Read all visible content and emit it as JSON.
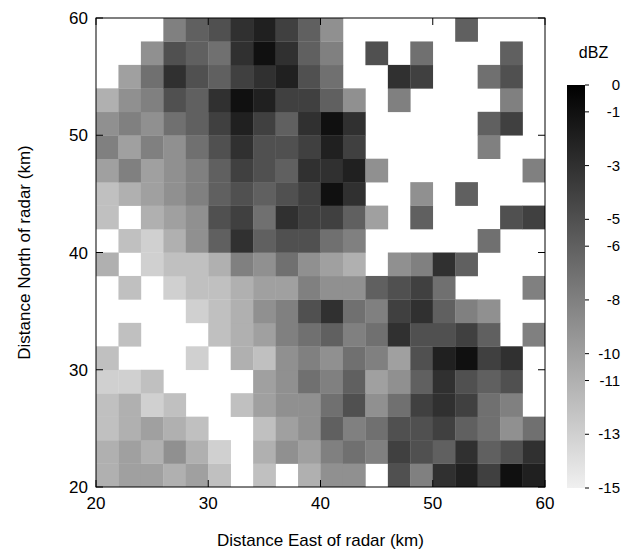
{
  "chart_data": {
    "type": "heatmap",
    "xlabel": "Distance East of radar (km)",
    "ylabel": "Distance North of radar (km)",
    "colorbar_label": "dBZ",
    "xlim": [
      20,
      60
    ],
    "ylim": [
      20,
      60
    ],
    "xticks": [
      20,
      30,
      40,
      50,
      60
    ],
    "yticks": [
      20,
      30,
      40,
      50,
      60
    ],
    "zlim": [
      -15,
      0
    ],
    "zticks": [
      0,
      -1,
      -3,
      -5,
      -6,
      -8,
      -10,
      -11,
      -13,
      -15
    ],
    "xbins": [
      20,
      22,
      24,
      26,
      28,
      30,
      32,
      34,
      36,
      38,
      40,
      42,
      44,
      46,
      48,
      50,
      52,
      54,
      56,
      58,
      60
    ],
    "ybins": [
      20,
      22,
      24,
      26,
      28,
      30,
      32,
      34,
      36,
      38,
      40,
      42,
      44,
      46,
      48,
      50,
      52,
      54,
      56,
      58,
      60
    ],
    "cells": [
      [
        -11,
        -10,
        -10,
        -11,
        -10,
        -12,
        null,
        -12,
        null,
        -11,
        -9,
        -9,
        null,
        -5,
        -8,
        -3,
        -2,
        -4,
        -1,
        -2
      ],
      [
        -11,
        -10,
        -11,
        -9,
        -11,
        -13,
        null,
        -11,
        -9,
        -10,
        -8,
        -7,
        -8,
        -4,
        -5,
        -6,
        -3,
        -6,
        -5,
        -3
      ],
      [
        -12,
        -11,
        -10,
        -11,
        -12,
        null,
        null,
        -12,
        -10,
        -9,
        -6,
        -8,
        -7,
        -5,
        -5,
        -4,
        -6,
        -7,
        -9,
        -7
      ],
      [
        -12,
        -11,
        -13,
        -12,
        null,
        null,
        -12,
        -10,
        -9,
        -9,
        -7,
        -5,
        -9,
        -7,
        -4,
        -3,
        -4,
        -7,
        -8,
        null
      ],
      [
        -13,
        -13,
        -12,
        null,
        null,
        null,
        null,
        -10,
        -9,
        -7,
        -8,
        -6,
        -10,
        -9,
        -6,
        -3,
        -5,
        -6,
        -5,
        null
      ],
      [
        -12,
        null,
        null,
        null,
        -13,
        null,
        -11,
        -12,
        -9,
        -8,
        -9,
        -7,
        -8,
        -10,
        -5,
        -2,
        -1,
        -4,
        -3,
        null
      ],
      [
        null,
        -12,
        null,
        null,
        null,
        -12,
        -11,
        -10,
        -8,
        -7,
        -6,
        -8,
        -7,
        -3,
        -5,
        -5,
        -4,
        -6,
        null,
        -8
      ],
      [
        null,
        null,
        null,
        null,
        -13,
        -12,
        -11,
        -9,
        -8,
        -5,
        -3,
        -7,
        -8,
        -4,
        -3,
        -6,
        -8,
        -9,
        null,
        null
      ],
      [
        null,
        -12,
        null,
        -13,
        -12,
        -12,
        -11,
        -10,
        -10,
        -8,
        -9,
        -9,
        -6,
        -5,
        -4,
        -7,
        null,
        null,
        null,
        -8
      ],
      [
        -11,
        null,
        -13,
        -12,
        -12,
        -11,
        -8,
        -9,
        -7,
        -9,
        -10,
        -11,
        null,
        -9,
        -8,
        -3,
        -6,
        null,
        null,
        null
      ],
      [
        null,
        -12,
        -13,
        -11,
        -9,
        -6,
        -3,
        -6,
        -5,
        -5,
        -7,
        -8,
        null,
        null,
        null,
        null,
        null,
        -7,
        null,
        null
      ],
      [
        -12,
        null,
        -11,
        -10,
        -9,
        -5,
        -4,
        -7,
        -3,
        -4,
        -4,
        -6,
        -10,
        null,
        -6,
        null,
        null,
        null,
        -5,
        -4
      ],
      [
        -12,
        -11,
        -10,
        -9,
        -8,
        -6,
        -5,
        -6,
        -5,
        -4,
        -1,
        -3,
        null,
        null,
        -9,
        null,
        -6,
        null,
        null,
        null
      ],
      [
        -10,
        -8,
        -10,
        -9,
        -8,
        -6,
        -4,
        -5,
        -6,
        -3,
        -3,
        -2,
        -9,
        null,
        null,
        null,
        null,
        null,
        null,
        -8
      ],
      [
        -8,
        -10,
        -8,
        -9,
        -7,
        -5,
        -3,
        -5,
        -5,
        -4,
        -2,
        -4,
        null,
        null,
        null,
        null,
        null,
        -8,
        null,
        null
      ],
      [
        -9,
        -8,
        -9,
        -7,
        -6,
        -4,
        -2,
        -4,
        -6,
        -3,
        -1,
        -3,
        null,
        null,
        null,
        null,
        null,
        -6,
        -4,
        null
      ],
      [
        -11,
        -9,
        -8,
        -5,
        -6,
        -3,
        -1,
        -2,
        -4,
        -4,
        -6,
        -9,
        null,
        -8,
        null,
        null,
        null,
        null,
        -8,
        null
      ],
      [
        null,
        -10,
        -7,
        -3,
        -5,
        -6,
        -4,
        -3,
        -2,
        -5,
        -7,
        null,
        null,
        -3,
        -4,
        null,
        null,
        -7,
        -5,
        null
      ],
      [
        null,
        null,
        -9,
        -5,
        -6,
        -7,
        -3,
        -1,
        -3,
        -6,
        -8,
        null,
        -5,
        null,
        -7,
        null,
        null,
        null,
        -6,
        null
      ],
      [
        null,
        null,
        null,
        -8,
        -6,
        -5,
        -3,
        -2,
        -4,
        -6,
        -9,
        null,
        null,
        null,
        null,
        null,
        -6,
        null,
        null,
        null
      ]
    ]
  }
}
